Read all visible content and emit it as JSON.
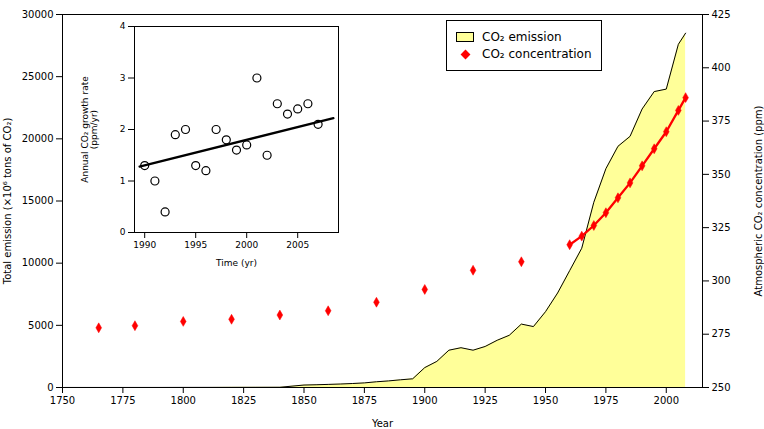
{
  "chart_data": [
    {
      "type": "area",
      "xlabel": "Year",
      "ylabel": "Total emission (×10⁶ tons of CO₂)",
      "y2label": "Atmospheric CO₂ concentration (ppm)",
      "xlim": [
        1750,
        2015
      ],
      "xticks": [
        1750,
        1775,
        1800,
        1825,
        1850,
        1875,
        1900,
        1925,
        1950,
        1975,
        2000
      ],
      "ylim": [
        0,
        30000
      ],
      "yticks": [
        0,
        5000,
        10000,
        15000,
        20000,
        25000,
        30000
      ],
      "y2lim": [
        250,
        425
      ],
      "y2ticks": [
        250,
        275,
        300,
        325,
        350,
        375,
        400,
        425
      ],
      "grid": false,
      "legend": "upper right",
      "series": [
        {
          "name": "CO₂ emission",
          "type": "area",
          "color": "#ffff99",
          "x": [
            1751,
            1760,
            1770,
            1780,
            1790,
            1800,
            1810,
            1820,
            1830,
            1840,
            1850,
            1855,
            1860,
            1865,
            1870,
            1875,
            1880,
            1885,
            1890,
            1895,
            1900,
            1905,
            1910,
            1915,
            1920,
            1925,
            1930,
            1935,
            1940,
            1945,
            1950,
            1955,
            1960,
            1965,
            1970,
            1975,
            1980,
            1985,
            1990,
            1995,
            2000,
            2005,
            2008
          ],
          "values": [
            3,
            3,
            3,
            4,
            5,
            8,
            10,
            12,
            16,
            20,
            198,
            220,
            250,
            280,
            320,
            370,
            460,
            530,
            620,
            700,
            1600,
            2100,
            3000,
            3200,
            3000,
            3300,
            3800,
            4200,
            5100,
            4900,
            6100,
            7600,
            9400,
            11200,
            14900,
            17600,
            19400,
            20200,
            22400,
            23800,
            24000,
            27600,
            28500
          ]
        },
        {
          "name": "CO₂ concentration",
          "type": "scatter",
          "axis": "y2",
          "color": "red",
          "marker": "diamond",
          "x": [
            1765,
            1780,
            1800,
            1820,
            1840,
            1860,
            1880,
            1900,
            1920,
            1940,
            1960,
            1965,
            1970,
            1975,
            1980,
            1985,
            1990,
            1995,
            2000,
            2005,
            2008
          ],
          "values": [
            278,
            279,
            281,
            282,
            284,
            286,
            290,
            296,
            305,
            309,
            317,
            321,
            326,
            332,
            339,
            346,
            354,
            362,
            370,
            380,
            386
          ]
        },
        {
          "name": "CO₂ concentration",
          "type": "line",
          "axis": "y2",
          "color": "red",
          "marker": "diamond",
          "x": [
            1765,
            1780,
            1800,
            1820,
            1840,
            1860,
            1880,
            1900,
            1920,
            1940,
            1960,
            1965,
            1970,
            1975,
            1980,
            1985,
            1990,
            1995,
            2000,
            2005,
            2008
          ],
          "values": [
            null,
            null,
            null,
            null,
            null,
            null,
            null,
            null,
            null,
            null,
            317,
            321,
            326,
            332,
            339,
            346,
            354,
            362,
            370,
            380,
            386
          ]
        }
      ]
    },
    {
      "type": "scatter",
      "xlabel": "Time (yr)",
      "ylabel": "Annual CO₂ growth rate\n(ppm/yr)",
      "xlim": [
        1989,
        2009
      ],
      "xticks": [
        1990,
        1995,
        2000,
        2005
      ],
      "ylim": [
        0,
        4
      ],
      "yticks": [
        0,
        1,
        2,
        3,
        4
      ],
      "grid": false,
      "series": [
        {
          "type": "scatter",
          "color": "black",
          "marker": "circle_open",
          "x": [
            1990,
            1991,
            1992,
            1993,
            1994,
            1995,
            1996,
            1997,
            1998,
            1999,
            2000,
            2001,
            2002,
            2003,
            2004,
            2005,
            2006,
            2007
          ],
          "values": [
            1.3,
            1.0,
            0.4,
            1.9,
            2.0,
            1.3,
            1.2,
            2.0,
            1.8,
            1.6,
            1.7,
            3.0,
            1.5,
            2.5,
            2.3,
            2.4,
            2.5,
            2.1
          ]
        },
        {
          "type": "line",
          "color": "black",
          "x": [
            1989.5,
            2008.5
          ],
          "values": [
            1.28,
            2.22
          ]
        }
      ]
    }
  ]
}
